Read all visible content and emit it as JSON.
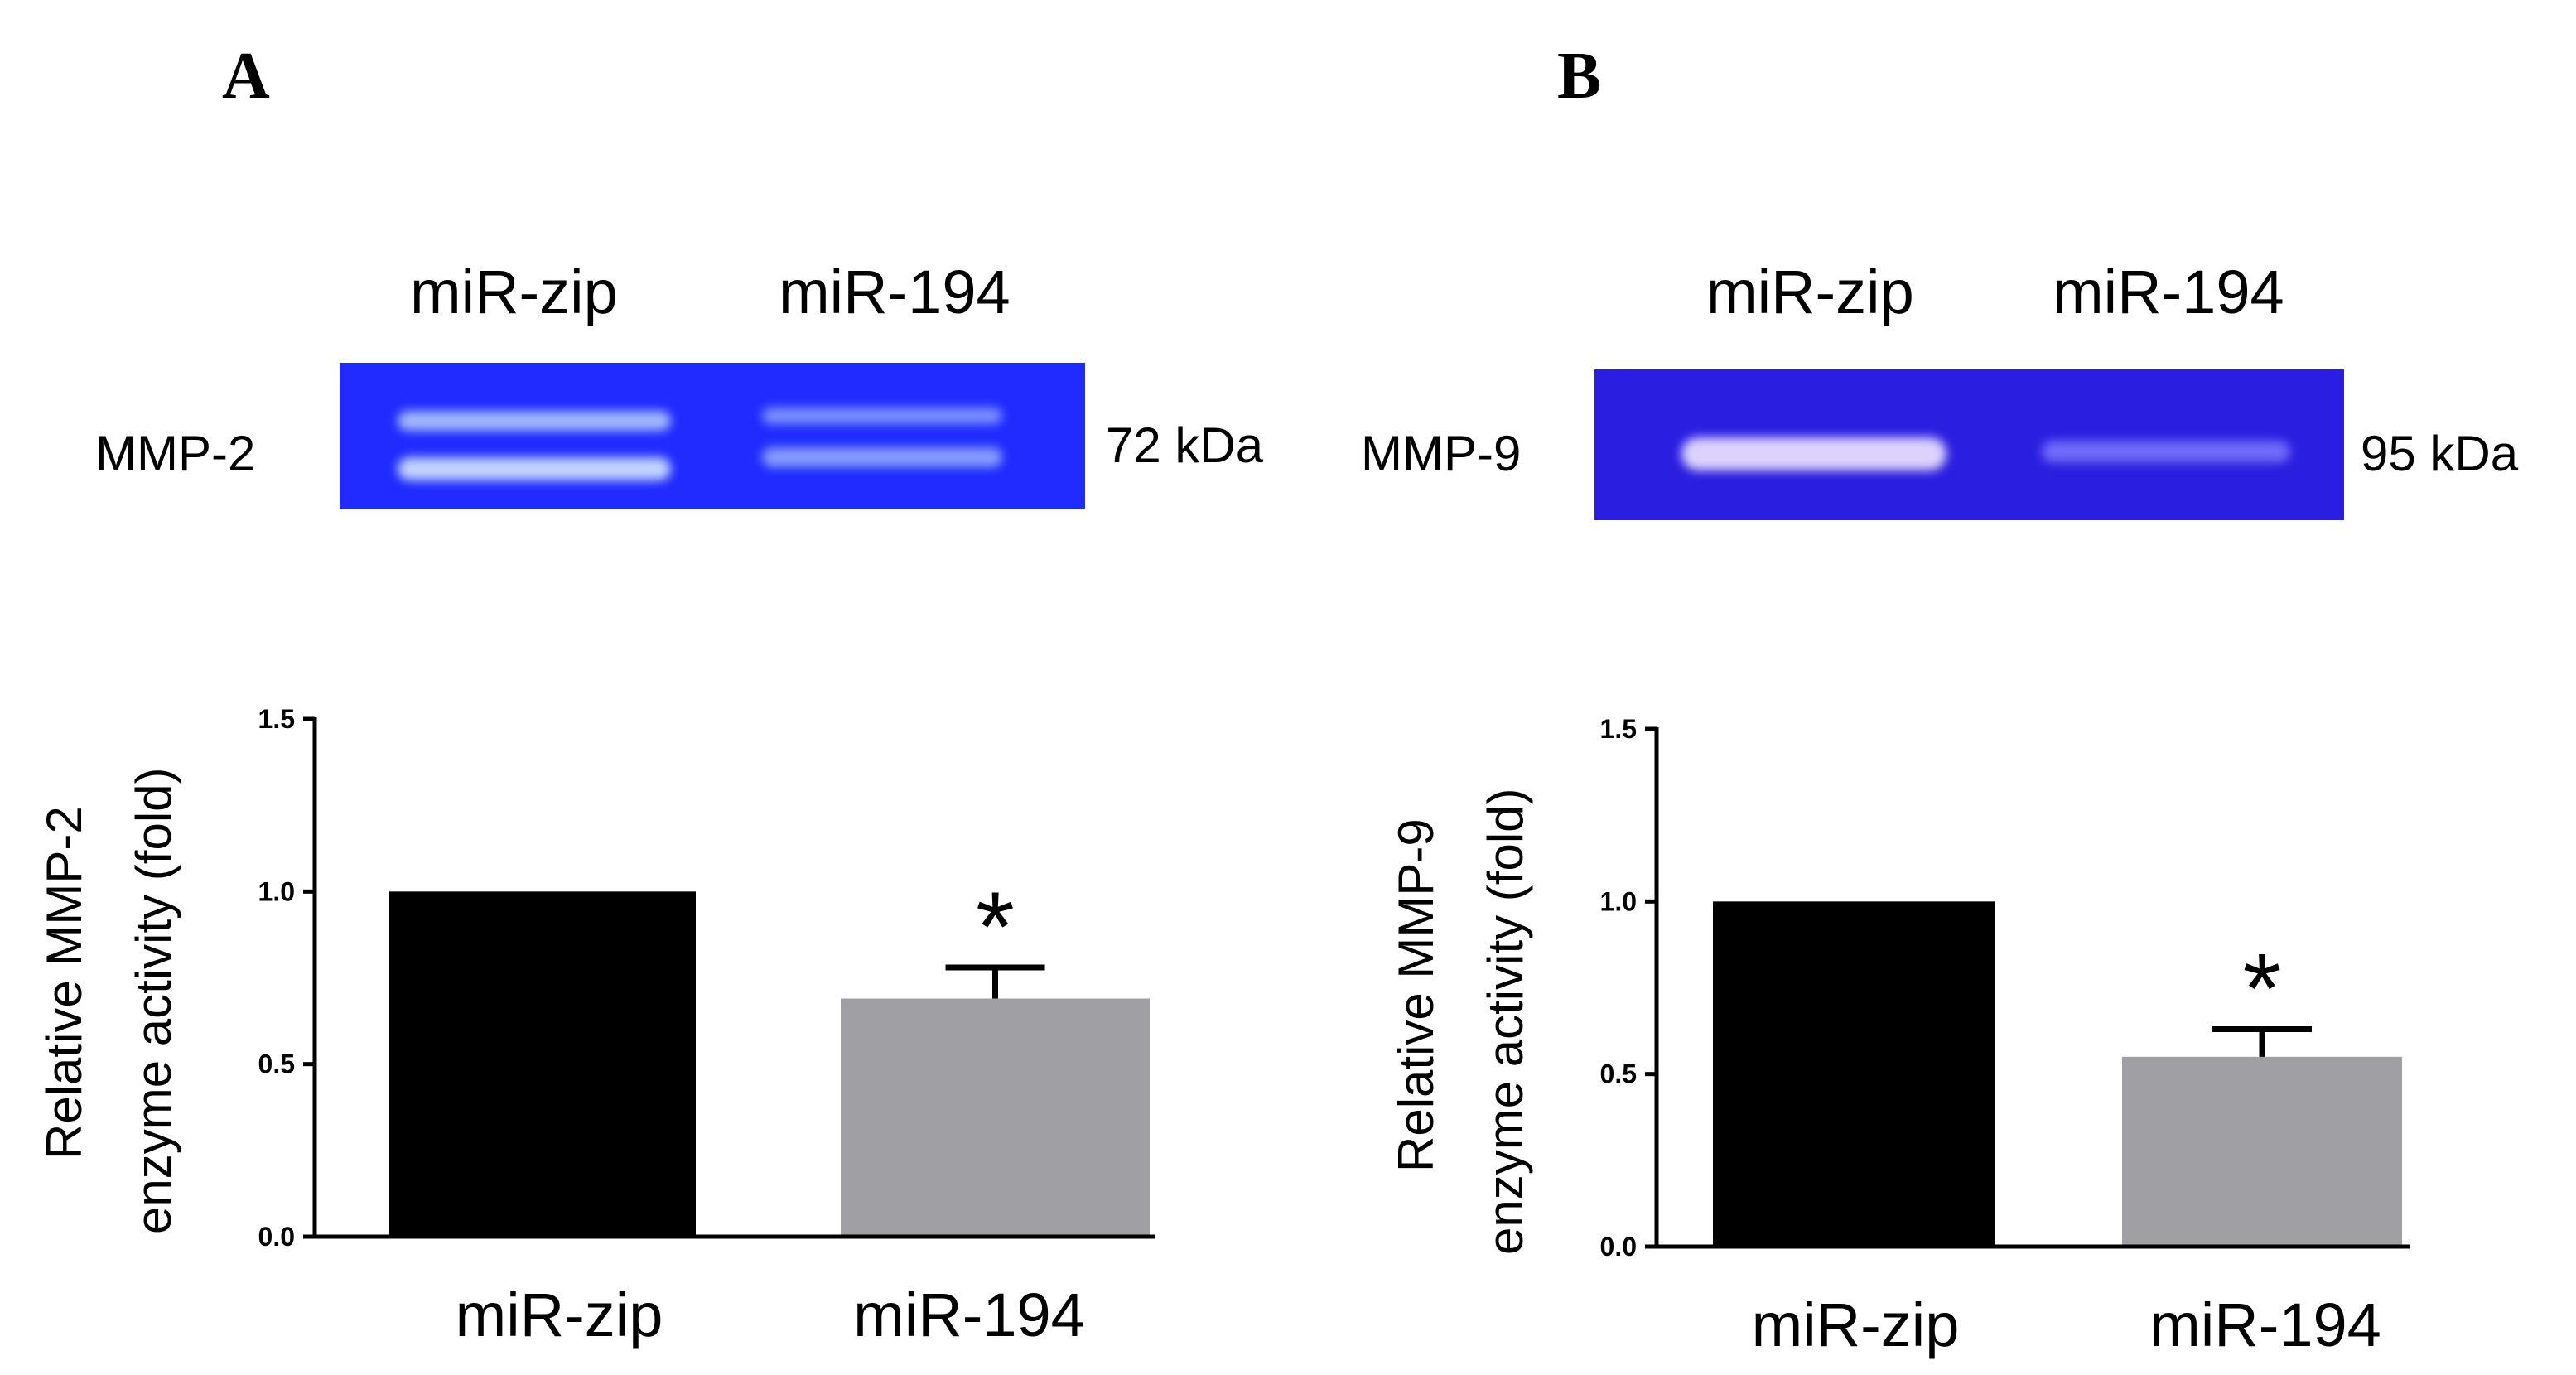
{
  "colors": {
    "gel_background": "#1f2bff",
    "gel_background_b": "#2a1ee0",
    "band": "#c9dcff",
    "bar_zip": "#000000",
    "bar_194": "#a0a0a4",
    "axis": "#000000"
  },
  "chart_data": [
    {
      "panel": "A",
      "gel": {
        "lanes": [
          "miR-zip",
          "miR-194"
        ],
        "protein": "MMP-2",
        "size": "72 kDa"
      },
      "type": "bar",
      "categories": [
        "miR-zip",
        "miR-194"
      ],
      "values": [
        1.0,
        0.69
      ],
      "error": [
        0,
        0.09
      ],
      "significance": [
        "",
        "*"
      ],
      "ylabel_line1": "Relative MMP-2",
      "ylabel_line2": "enzyme activity (fold)",
      "ylim": [
        0,
        1.5
      ],
      "yticks": [
        "0.0",
        "0.5",
        "1.0",
        "1.5"
      ],
      "ytick_values": [
        0,
        0.5,
        1.0,
        1.5
      ]
    },
    {
      "panel": "B",
      "gel": {
        "lanes": [
          "miR-zip",
          "miR-194"
        ],
        "protein": "MMP-9",
        "size": "95 kDa"
      },
      "type": "bar",
      "categories": [
        "miR-zip",
        "miR-194"
      ],
      "values": [
        1.0,
        0.55
      ],
      "error": [
        0,
        0.08
      ],
      "significance": [
        "",
        "*"
      ],
      "ylabel_line1": "Relative MMP-9",
      "ylabel_line2": "enzyme activity (fold)",
      "ylim": [
        0,
        1.5
      ],
      "yticks": [
        "0.0",
        "0.5",
        "1.0",
        "1.5"
      ],
      "ytick_values": [
        0,
        0.5,
        1.0,
        1.5
      ]
    }
  ]
}
